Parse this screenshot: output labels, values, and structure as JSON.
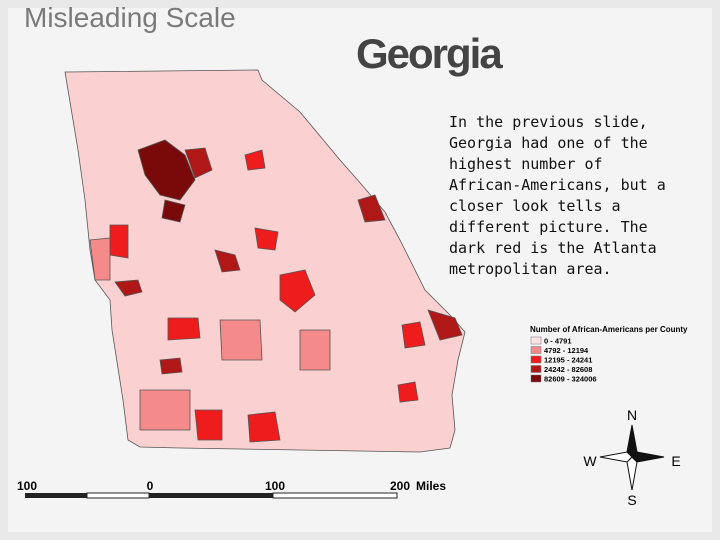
{
  "slide": {
    "title": "Misleading Scale",
    "map_title": "Georgia",
    "body": "In the previous slide, Georgia had one of the highest number of African-Americans, but a closer look tells a different picture.  The dark red is the Atlanta metropolitan area."
  },
  "legend": {
    "title": "Number of African-Americans per County",
    "items": [
      {
        "label": "0 - 4791",
        "color": "#fde3e3"
      },
      {
        "label": "4792 - 12194",
        "color": "#f48a8a"
      },
      {
        "label": "12195 - 24241",
        "color": "#ee1c1c"
      },
      {
        "label": "24242 - 82608",
        "color": "#b01818"
      },
      {
        "label": "82609 - 324006",
        "color": "#7a0a0a"
      }
    ]
  },
  "scale_bar": {
    "labels": [
      "100",
      "0",
      "100",
      "200"
    ],
    "unit": "Miles"
  },
  "compass": {
    "n": "N",
    "s": "S",
    "e": "E",
    "w": "W"
  }
}
